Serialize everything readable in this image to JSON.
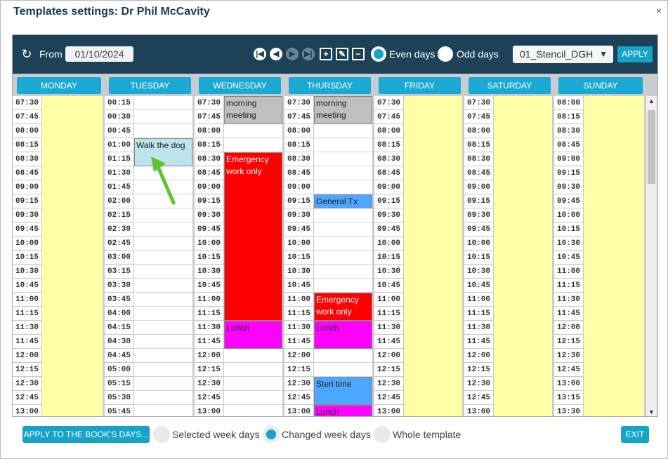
{
  "dialog": {
    "title": "Templates settings: Dr Phil McCavity",
    "close": "×"
  },
  "toolbar": {
    "from_label": "From",
    "from_date": "01/10/2024",
    "refresh_icon": "↻",
    "nav_icons": [
      "|◀",
      "◀",
      "▶",
      "▶|"
    ],
    "edit_icons": [
      "+",
      "✎",
      "−"
    ],
    "even_days_label": "Even days",
    "odd_days_label": "Odd days",
    "even_days_selected": true,
    "stencil_value": "01_Stencil_DGH",
    "apply_label": "APPLY"
  },
  "days": [
    {
      "name": "MONDAY",
      "times": [
        "07:30",
        "07:45",
        "08:00",
        "08:15",
        "08:30",
        "08:45",
        "09:00",
        "09:15",
        "09:30",
        "09:45",
        "10:00",
        "10:15",
        "10:30",
        "10:45",
        "11:00",
        "11:15",
        "11:30",
        "11:45",
        "12:00",
        "12:15",
        "12:30",
        "12:45",
        "13:00"
      ],
      "yellow": true
    },
    {
      "name": "TUESDAY",
      "times": [
        "00:15",
        "00:30",
        "00:45",
        "01:00",
        "01:15",
        "01:30",
        "01:45",
        "02:00",
        "02:15",
        "02:30",
        "02:45",
        "03:00",
        "03:15",
        "03:30",
        "03:45",
        "04:00",
        "04:15",
        "04:30",
        "04:45",
        "05:00",
        "05:15",
        "05:30",
        "05:45"
      ],
      "yellow": false
    },
    {
      "name": "WEDNESDAY",
      "times": [
        "07:30",
        "07:45",
        "08:00",
        "08:15",
        "08:30",
        "08:45",
        "09:00",
        "09:15",
        "09:30",
        "09:45",
        "10:00",
        "10:15",
        "10:30",
        "10:45",
        "11:00",
        "11:15",
        "11:30",
        "11:45",
        "12:00",
        "12:15",
        "12:30",
        "12:45",
        "13:00"
      ],
      "yellow": false
    },
    {
      "name": "THURSDAY",
      "times": [
        "07:30",
        "07:45",
        "08:00",
        "08:15",
        "08:30",
        "08:45",
        "09:00",
        "09:15",
        "09:30",
        "09:45",
        "10:00",
        "10:15",
        "10:30",
        "10:45",
        "11:00",
        "11:15",
        "11:30",
        "11:45",
        "12:00",
        "12:15",
        "12:30",
        "12:45",
        "13:00"
      ],
      "yellow": false
    },
    {
      "name": "FRIDAY",
      "times": [
        "07:30",
        "07:45",
        "08:00",
        "08:15",
        "08:30",
        "08:45",
        "09:00",
        "09:15",
        "09:30",
        "09:45",
        "10:00",
        "10:15",
        "10:30",
        "10:45",
        "11:00",
        "11:15",
        "11:30",
        "11:45",
        "12:00",
        "12:15",
        "12:30",
        "12:45",
        "13:00"
      ],
      "yellow": true
    },
    {
      "name": "SATURDAY",
      "times": [
        "07:30",
        "07:45",
        "08:00",
        "08:15",
        "08:30",
        "08:45",
        "09:00",
        "09:15",
        "09:30",
        "09:45",
        "10:00",
        "10:15",
        "10:30",
        "10:45",
        "11:00",
        "11:15",
        "11:30",
        "11:45",
        "12:00",
        "12:15",
        "12:30",
        "12:45",
        "13:00"
      ],
      "yellow": true
    },
    {
      "name": "SUNDAY",
      "times": [
        "08:00",
        "08:15",
        "08:30",
        "08:45",
        "09:00",
        "09:15",
        "09:30",
        "09:45",
        "10:00",
        "10:15",
        "10:30",
        "10:45",
        "11:00",
        "11:15",
        "11:30",
        "11:45",
        "12:00",
        "12:15",
        "12:30",
        "12:45",
        "13:00",
        "13:15",
        "13:30"
      ],
      "yellow": true
    }
  ],
  "events": {
    "walk_dog": "Walk the dog",
    "wed_meeting": "morning meeting",
    "wed_emergency": "Emergency work only",
    "wed_lunch": "Lunch",
    "thu_meeting": "morning meeting",
    "thu_general": "General Tx",
    "thu_emergency": "Emergency work only",
    "thu_lunch": "Lunch",
    "thu_steri": "Steri time",
    "thu_lunch2": "Lunch"
  },
  "colors": {
    "header": "#1d4258",
    "accent": "#16a3c8",
    "yellow": "#ffffa8",
    "emergency": "#ff0000",
    "lunch": "#ff00ff",
    "meeting": "#c0c0c0",
    "blue_event": "#4da6ff",
    "walk": "#bde4ec",
    "arrow": "#5cc52e"
  },
  "footer": {
    "apply_book_label": "APPLY TO THE BOOK'S DAYS...",
    "selected_week_days": "Selected week days",
    "changed_week_days": "Changed week days",
    "whole_template": "Whole template",
    "exit_label": "EXIT"
  }
}
